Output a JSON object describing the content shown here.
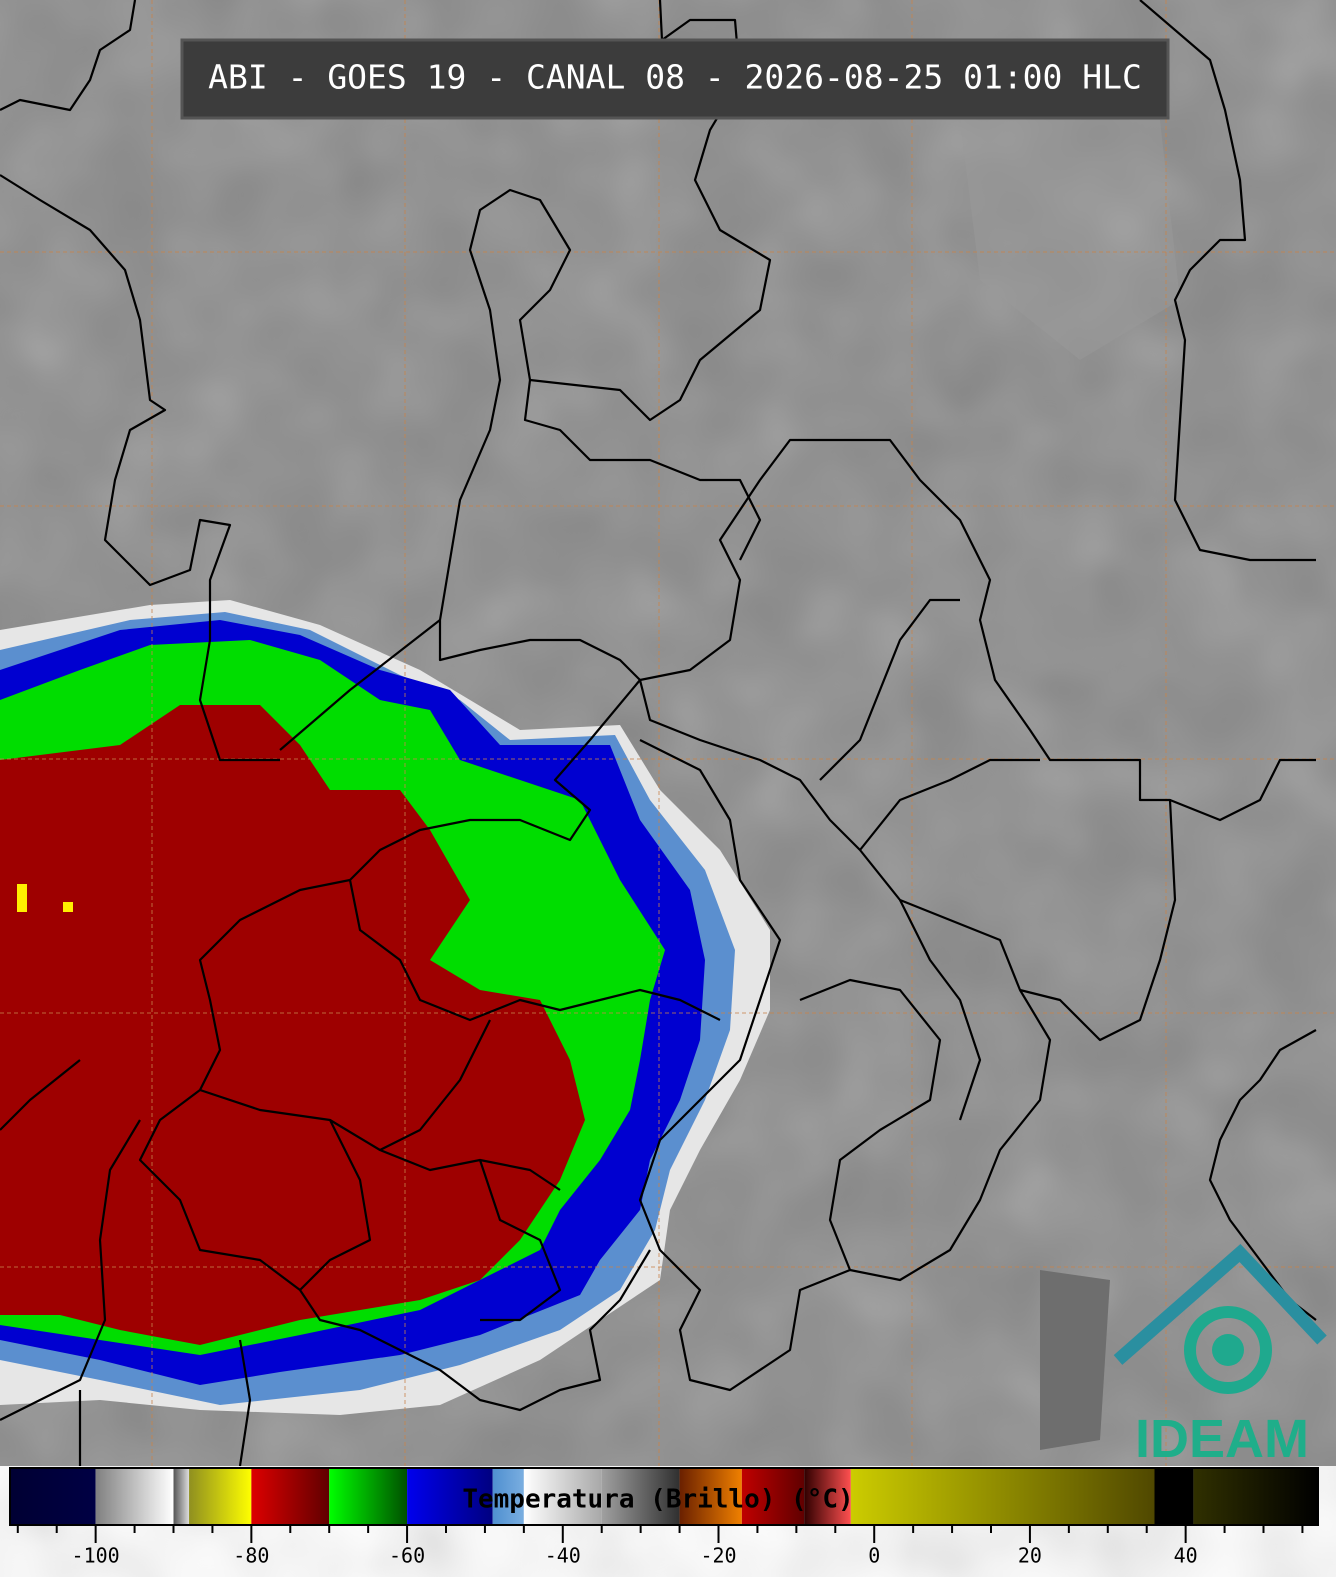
{
  "header": {
    "title": "ABI - GOES 19 - CANAL 08 - 2026-08-25 01:00 HLC"
  },
  "logo": {
    "text": "IDEAM"
  },
  "colorbar": {
    "label": "Temperatura (Brillo) (°C)",
    "range": [
      -111,
      57
    ],
    "ticks": [
      -100,
      -80,
      -60,
      -40,
      -20,
      0,
      20,
      40
    ],
    "minor_ticks": [
      -110,
      -105,
      -95,
      -90,
      -85,
      -75,
      -70,
      -65,
      -55,
      -50,
      -45,
      -35,
      -30,
      -25,
      -15,
      -10,
      -5,
      5,
      10,
      15,
      25,
      30,
      35,
      45,
      50,
      55
    ],
    "segments": [
      {
        "from": -111,
        "to": -100,
        "color_from": "#000033",
        "color_to": "#000044"
      },
      {
        "from": -100,
        "to": -90,
        "color_from": "#808080",
        "color_to": "#ffffff"
      },
      {
        "from": -90,
        "to": -88,
        "color_from": "#555555",
        "color_to": "#dddddd"
      },
      {
        "from": -88,
        "to": -80,
        "color_from": "#8f8f20",
        "color_to": "#ffff00"
      },
      {
        "from": -80,
        "to": -70,
        "color_from": "#dd0000",
        "color_to": "#600000"
      },
      {
        "from": -70,
        "to": -60,
        "color_from": "#00ff00",
        "color_to": "#005000"
      },
      {
        "from": -60,
        "to": -49,
        "color_from": "#0000ee",
        "color_to": "#000080"
      },
      {
        "from": -49,
        "to": -45,
        "color_from": "#4f8fd0",
        "color_to": "#7aaee0"
      },
      {
        "from": -45,
        "to": -35,
        "color_from": "#ffffff",
        "color_to": "#a8a8a8"
      },
      {
        "from": -35,
        "to": -25,
        "color_from": "#a0a0a0",
        "color_to": "#303030"
      },
      {
        "from": -25,
        "to": -17,
        "color_from": "#6a2000",
        "color_to": "#f08000"
      },
      {
        "from": -17,
        "to": -9,
        "color_from": "#c00000",
        "color_to": "#600000"
      },
      {
        "from": -9,
        "to": -3,
        "color_from": "#300000",
        "color_to": "#ff5050"
      },
      {
        "from": -3,
        "to": 36,
        "color_from": "#cccc00",
        "color_to": "#504800"
      },
      {
        "from": 36,
        "to": 41,
        "color_from": "#000000",
        "color_to": "#000000"
      },
      {
        "from": 41,
        "to": 57,
        "color_from": "#303000",
        "color_to": "#000000"
      }
    ]
  }
}
